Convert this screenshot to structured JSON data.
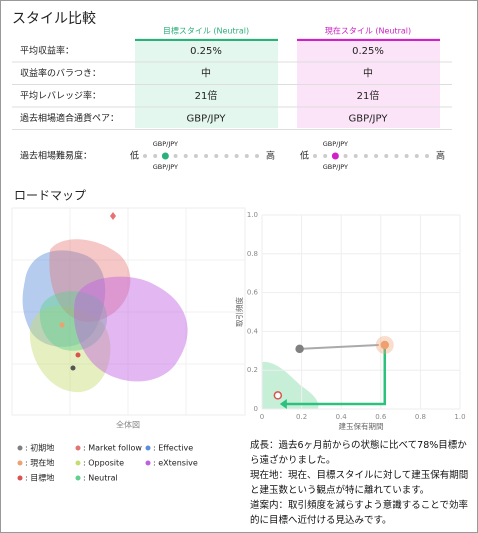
{
  "title": "スタイル比較",
  "compare": {
    "target_header": "目標スタイル (Neutral)",
    "current_header": "現在スタイル (Neutral)",
    "rows": [
      [
        "平均収益率：",
        "0.25%",
        "0.25%"
      ],
      [
        "収益率のバラつき：",
        "中",
        "中"
      ],
      [
        "平均レバレッジ率：",
        "21倍",
        "21倍"
      ],
      [
        "過去相場適合通貨ペア：",
        "GBP/JPY",
        "GBP/JPY"
      ]
    ]
  },
  "difficulty": {
    "label": "過去相場難易度：",
    "low": "低",
    "high": "高",
    "dots": 12,
    "target": {
      "pair": "GBP/JPY",
      "position": 2
    },
    "current": {
      "pair": "GBP/JPY",
      "position": 2
    }
  },
  "roadmap_title": "ロードマップ",
  "overview_label": "全体図",
  "roadmap": {
    "type": "scatter",
    "xlabel": "建玉保有期間",
    "ylabel": "取引頻度",
    "xlim": [
      0,
      1
    ],
    "ylim": [
      0,
      1
    ],
    "xticks": [
      0,
      0.2,
      0.4,
      0.6,
      0.8,
      {
        "value": 1,
        "label": "1.0"
      }
    ],
    "yticks": [
      0,
      0.2,
      0.4,
      0.6,
      0.8,
      {
        "value": 1,
        "label": "1.0"
      }
    ],
    "points": [
      {
        "x": 0.19,
        "y": 0.31,
        "color": "#808080"
      },
      {
        "x": 0.62,
        "y": 0.33,
        "color": "#f0a070"
      },
      {
        "x": 0.08,
        "y": 0.07,
        "color": "#d9534f"
      }
    ]
  },
  "legend": [
    {
      "label": ": 初期地",
      "color": "#808080"
    },
    {
      "label": ": Market follow",
      "color": "#e57373"
    },
    {
      "label": ": Effective",
      "color": "#5b8fd9"
    },
    {
      "label": ": 現在地",
      "color": "#f0a070"
    },
    {
      "label": ": Opposite",
      "color": "#c6dc70"
    },
    {
      "label": ": eXtensive",
      "color": "#c060e0"
    },
    {
      "label": ": 目標地",
      "color": "#d9534f"
    },
    {
      "label": ": Neutral",
      "color": "#5fd08e"
    }
  ],
  "comment": [
    "成長：過去6ヶ月前からの状態に比べて78%目標から遠ざかりました。",
    "現在地：現在、目標スタイルに対して建玉保有期間と建玉数という観点が特に離れています。",
    "道案内：取引頻度を減らすよう意識することで効率的に目標へ近付ける見込みです。"
  ]
}
